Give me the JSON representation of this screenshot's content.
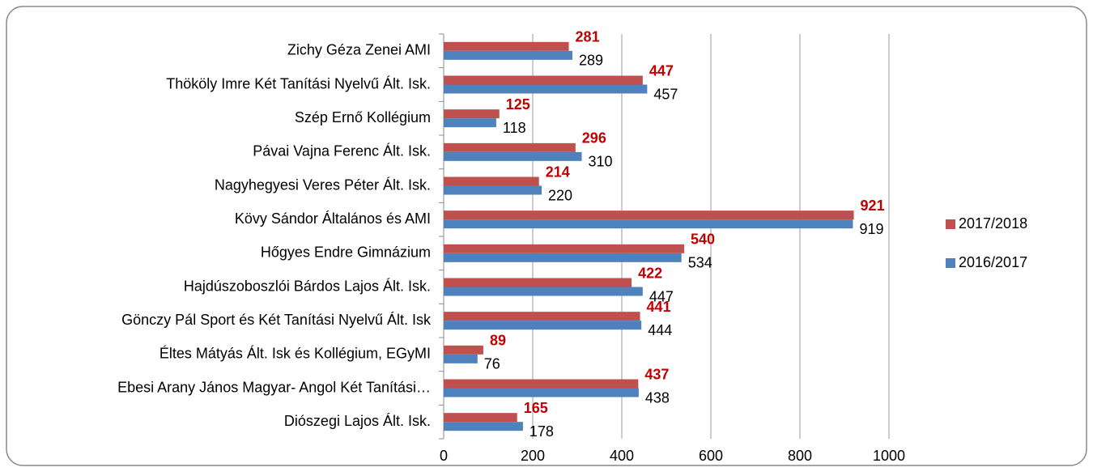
{
  "chart_data": {
    "type": "hbar",
    "categories": [
      "Diószegi Lajos Ált. Isk.",
      "Ebesi Arany János Magyar- Angol Két Tanítási…",
      "Éltes Mátyás Ált. Isk és Kollégium, EGyMI",
      "Gönczy Pál Sport és Két Tanítási Nyelvű Ált. Isk",
      "Hajdúszoboszlói Bárdos Lajos Ált. Isk.",
      "Hőgyes Endre Gimnázium",
      "Kövy Sándor Általános és AMI",
      "Nagyhegyesi Veres Péter Ált. Isk.",
      "Pávai Vajna Ferenc Ált. Isk.",
      "Szép Ernő Kollégium",
      "Thököly Imre Két Tanítási Nyelvű Ált. Isk.",
      "Zichy Géza Zenei AMI"
    ],
    "series": [
      {
        "name": "2017/2018",
        "color": "#c0504d",
        "label_color": "#c00000",
        "label_bold": true,
        "values": [
          165,
          437,
          89,
          441,
          422,
          540,
          921,
          214,
          296,
          125,
          447,
          281
        ]
      },
      {
        "name": "2016/2017",
        "color": "#4f81bd",
        "label_color": "#000000",
        "label_bold": false,
        "values": [
          178,
          438,
          76,
          444,
          447,
          534,
          919,
          220,
          310,
          118,
          457,
          289
        ]
      }
    ],
    "xlim": [
      0,
      1000
    ],
    "xticks": [
      0,
      200,
      400,
      600,
      800,
      1000
    ],
    "grid": true,
    "legend": "right"
  }
}
